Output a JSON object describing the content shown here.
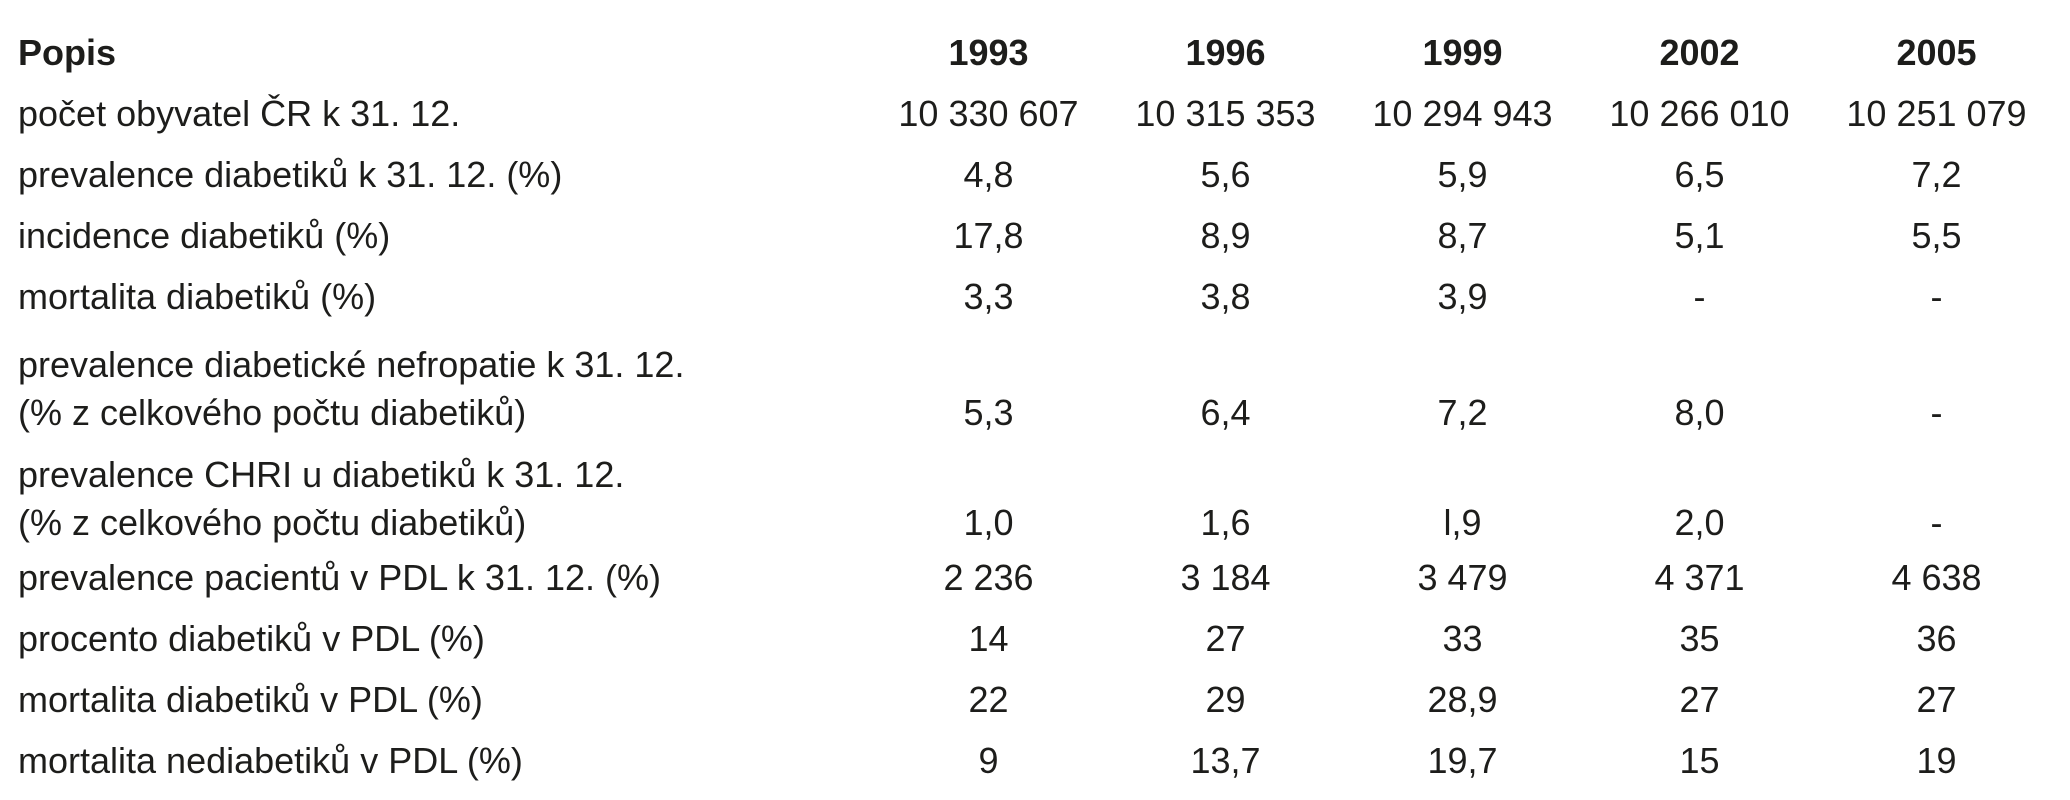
{
  "table": {
    "header": {
      "desc": "Popis",
      "years": [
        "1993",
        "1996",
        "1999",
        "2002",
        "2005"
      ]
    },
    "rows": [
      {
        "desc": [
          "počet obyvatel ČR k 31. 12."
        ],
        "values": [
          "10 330 607",
          "10 315 353",
          "10 294 943",
          "10 266 010",
          "10 251 079"
        ]
      },
      {
        "desc": [
          "prevalence diabetiků k 31. 12. (%)"
        ],
        "values": [
          "4,8",
          "5,6",
          "5,9",
          "6,5",
          "7,2"
        ]
      },
      {
        "desc": [
          "incidence diabetiků (%)"
        ],
        "values": [
          "17,8",
          "8,9",
          "8,7",
          "5,1",
          "5,5"
        ]
      },
      {
        "desc": [
          "mortalita diabetiků (%)"
        ],
        "values": [
          "3,3",
          "3,8",
          "3,9",
          "-",
          "-"
        ]
      },
      {
        "desc": [
          "prevalence diabetické nefropatie k 31. 12.",
          "(% z celkového počtu diabetiků)"
        ],
        "values": [
          "5,3",
          "6,4",
          "7,2",
          "8,0",
          "-"
        ]
      },
      {
        "desc": [
          "prevalence CHRI u diabetiků k 31. 12.",
          "(% z celkového počtu diabetiků)"
        ],
        "values": [
          "1,0",
          "1,6",
          "l,9",
          "2,0",
          "-"
        ]
      },
      {
        "desc": [
          "prevalence pacientů v PDL k 31. 12. (%)"
        ],
        "values": [
          "2 236",
          "3 184",
          "3 479",
          "4 371",
          "4 638"
        ]
      },
      {
        "desc": [
          "procento diabetiků v PDL (%)"
        ],
        "values": [
          "14",
          "27",
          "33",
          "35",
          "36"
        ]
      },
      {
        "desc": [
          "mortalita diabetiků v PDL (%)"
        ],
        "values": [
          "22",
          "29",
          "28,9",
          "27",
          "27"
        ]
      },
      {
        "desc": [
          "mortalita nediabetiků v PDL (%)"
        ],
        "values": [
          "9",
          "13,7",
          "19,7",
          "15",
          "19"
        ]
      }
    ]
  }
}
